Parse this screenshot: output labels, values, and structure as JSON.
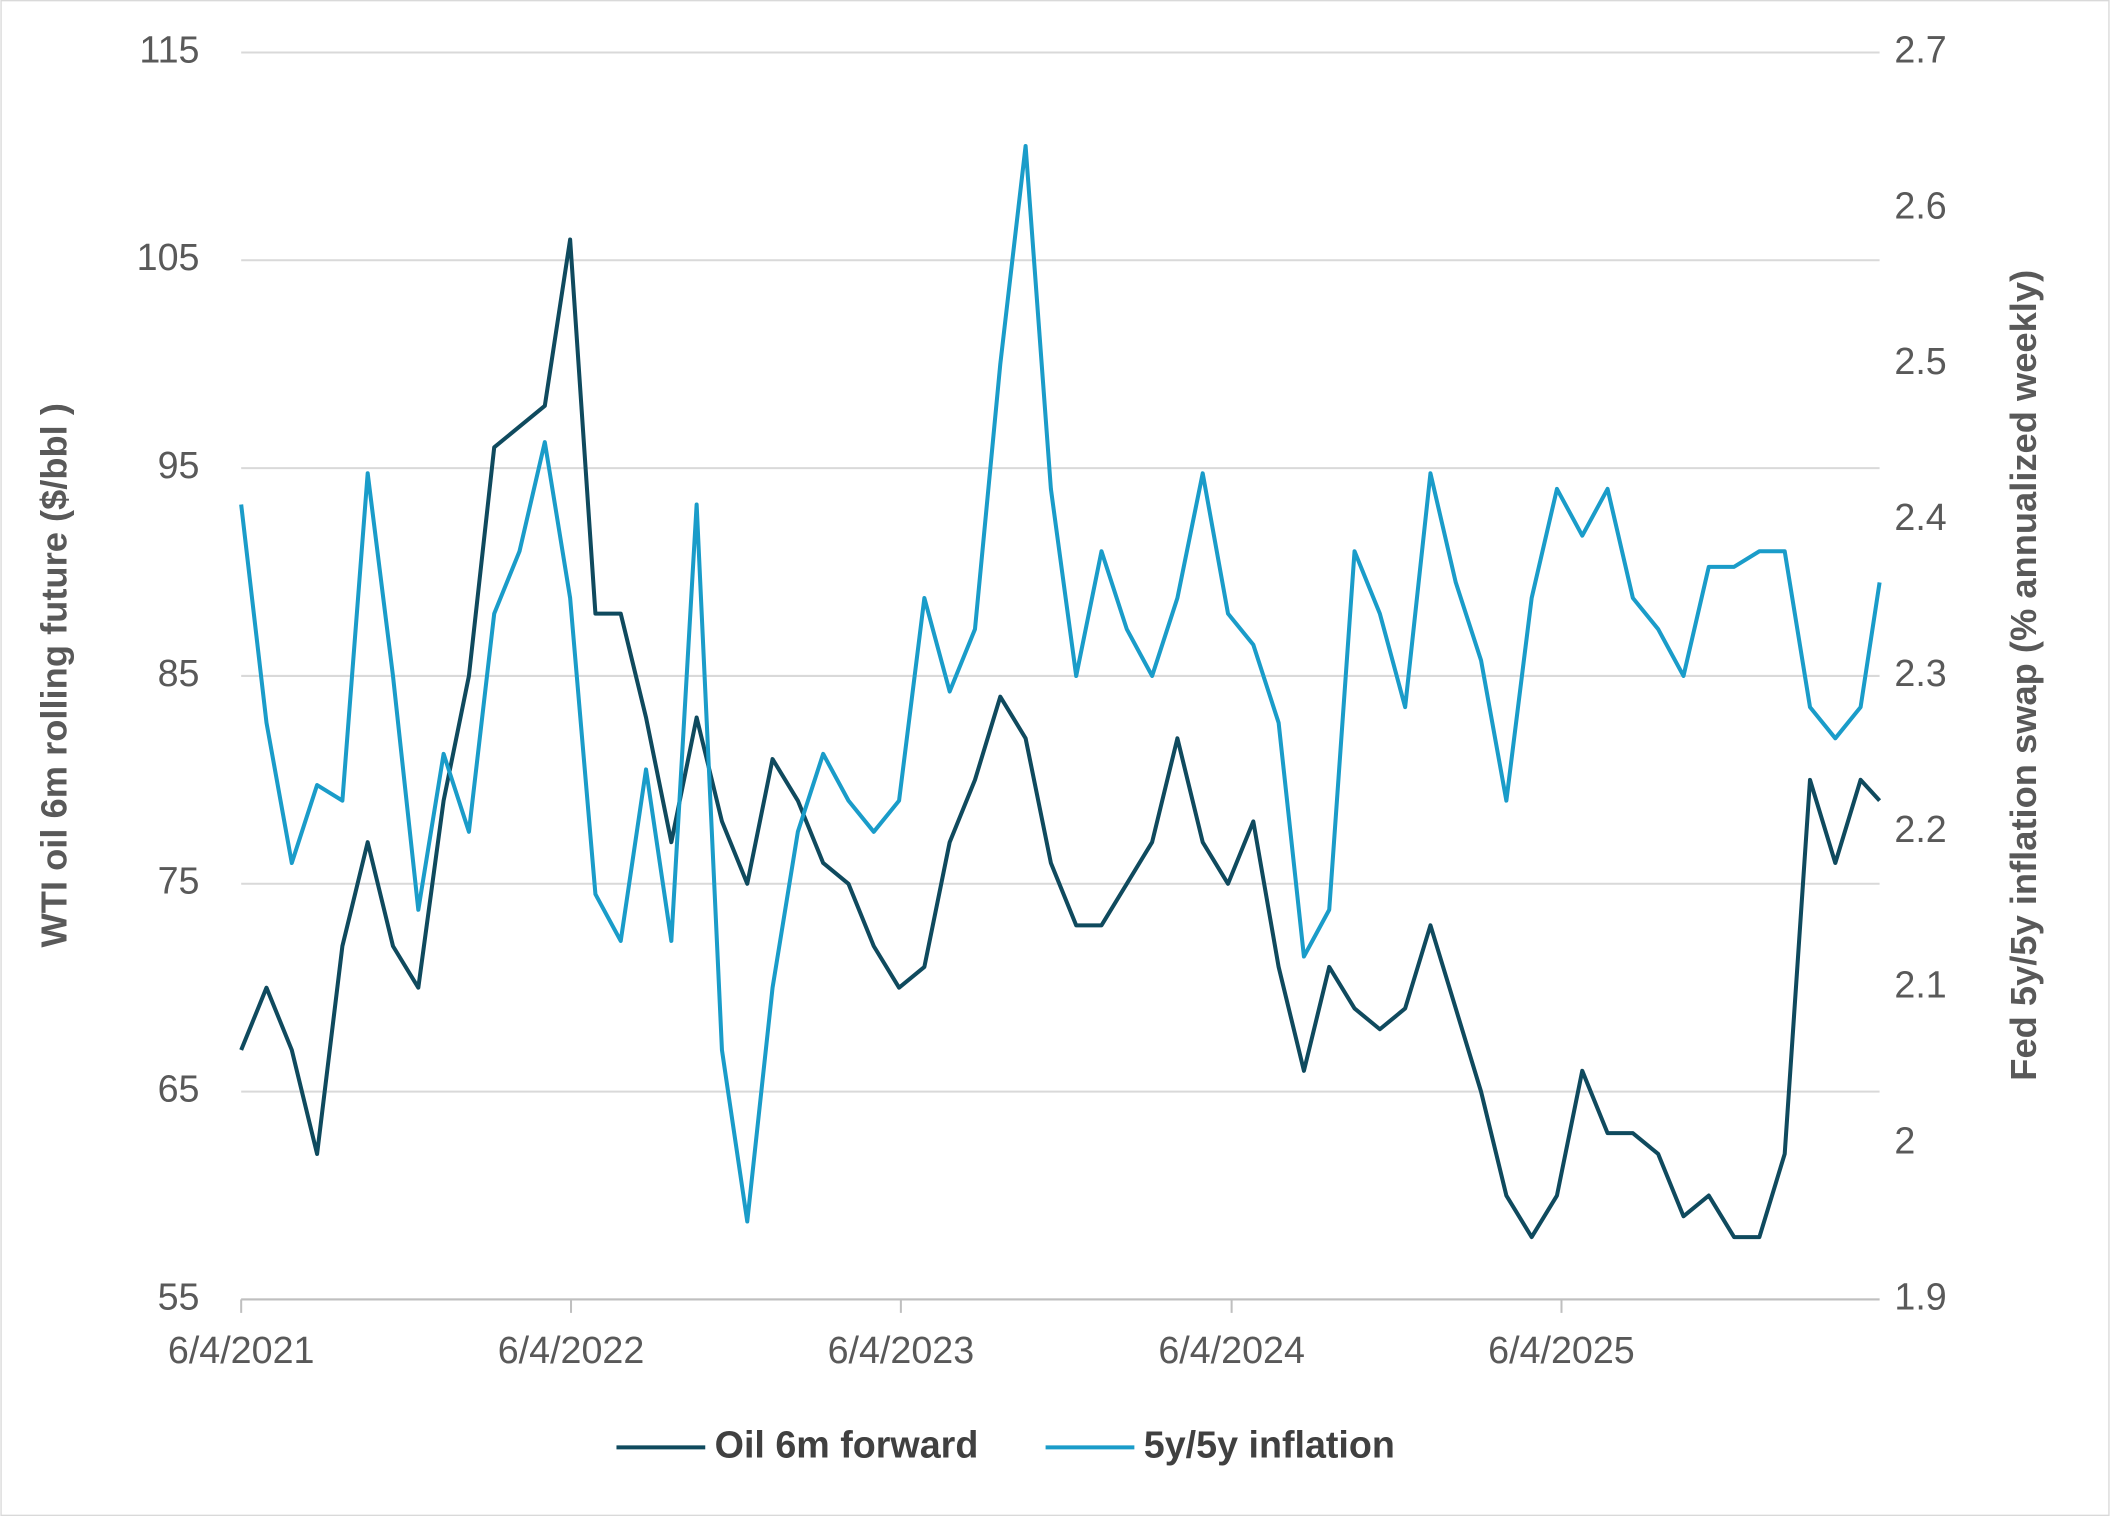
{
  "chart_data": {
    "type": "line",
    "y_label": "WTI oil 6m rolling future ($/bbl )",
    "y2_label": "Fed 5y/5y inflation swap (% annualized weekly)",
    "x": [
      "6/4/2021",
      "7/2/2021",
      "7/30/2021",
      "8/27/2021",
      "9/24/2021",
      "10/22/2021",
      "11/19/2021",
      "12/17/2021",
      "1/14/2022",
      "2/11/2022",
      "3/11/2022",
      "4/8/2022",
      "5/6/2022",
      "6/3/2022",
      "7/1/2022",
      "7/29/2022",
      "8/26/2022",
      "9/23/2022",
      "10/21/2022",
      "11/18/2022",
      "12/16/2022",
      "1/13/2023",
      "2/10/2023",
      "3/10/2023",
      "4/7/2023",
      "5/5/2023",
      "6/2/2023",
      "6/30/2023",
      "7/28/2023",
      "8/25/2023",
      "9/22/2023",
      "10/20/2023",
      "11/17/2023",
      "12/15/2023",
      "1/12/2024",
      "2/9/2024",
      "3/8/2024",
      "4/5/2024",
      "5/3/2024",
      "5/31/2024",
      "6/28/2024",
      "7/26/2024",
      "8/23/2024",
      "9/20/2024",
      "10/18/2024",
      "11/15/2024",
      "12/13/2024",
      "1/10/2025",
      "2/7/2025",
      "3/7/2025",
      "4/4/2025",
      "5/2/2025",
      "5/30/2025",
      "6/27/2025",
      "7/25/2025",
      "8/22/2025",
      "9/19/2025",
      "10/17/2025",
      "11/14/2025",
      "12/12/2025",
      "1/9/2026",
      "2/6/2026",
      "3/6/2026",
      "4/3/2026",
      "5/1/2026",
      "5/22/2026"
    ],
    "xlim": [
      "6/4/2021",
      "5/22/2026"
    ],
    "xticks": [
      "6/4/2021",
      "6/4/2022",
      "6/4/2023",
      "6/4/2024",
      "6/4/2025"
    ],
    "ylim": [
      55,
      115
    ],
    "yticks": [
      55,
      65,
      75,
      85,
      95,
      105,
      115
    ],
    "y2lim": [
      1.9,
      2.7
    ],
    "y2ticks": [
      1.9,
      2,
      2.1,
      2.2,
      2.3,
      2.4,
      2.5,
      2.6,
      2.7
    ],
    "grid": true,
    "legend": "bottom",
    "series": [
      {
        "name": "Oil 6m forward",
        "color": "#0f4a5e",
        "values": [
          67,
          70,
          67,
          62,
          72,
          77,
          72,
          70,
          79,
          85,
          96,
          97,
          98,
          106,
          88,
          88,
          83,
          77,
          83,
          78,
          75,
          81,
          79,
          76,
          75,
          72,
          70,
          71,
          77,
          80,
          84,
          82,
          76,
          73,
          73,
          75,
          77,
          82,
          77,
          75,
          78,
          71,
          66,
          71,
          69,
          68,
          69,
          73,
          69,
          65,
          60,
          58,
          60,
          66,
          63,
          63,
          62,
          59,
          60,
          58,
          58,
          62,
          80,
          76,
          80,
          79
        ]
      },
      {
        "name": "5y/5y inflation",
        "color": "#1a9cc9",
        "axis": "y2",
        "values": [
          2.41,
          2.27,
          2.18,
          2.23,
          2.22,
          2.43,
          2.3,
          2.15,
          2.25,
          2.2,
          2.34,
          2.38,
          2.45,
          2.35,
          2.16,
          2.13,
          2.24,
          2.13,
          2.41,
          2.06,
          1.95,
          2.1,
          2.2,
          2.25,
          2.22,
          2.2,
          2.22,
          2.35,
          2.29,
          2.33,
          2.5,
          2.64,
          2.42,
          2.3,
          2.38,
          2.33,
          2.3,
          2.35,
          2.43,
          2.34,
          2.32,
          2.27,
          2.12,
          2.15,
          2.38,
          2.34,
          2.28,
          2.43,
          2.36,
          2.31,
          2.22,
          2.35,
          2.42,
          2.39,
          2.42,
          2.35,
          2.33,
          2.3,
          2.37,
          2.37,
          2.38,
          2.38,
          2.28,
          2.26,
          2.28,
          2.36
        ]
      }
    ]
  }
}
